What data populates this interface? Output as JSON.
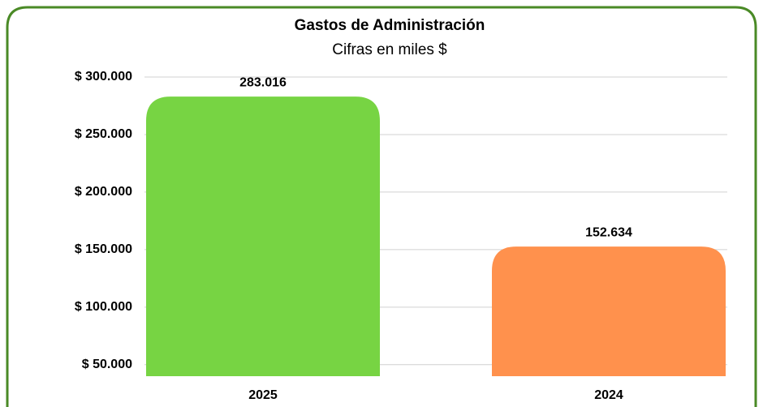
{
  "chart_data": {
    "type": "bar",
    "title": "Gastos de Administración",
    "subtitle": "Cifras en miles $",
    "categories": [
      "2025",
      "2024"
    ],
    "values": [
      283016,
      152634
    ],
    "value_labels": [
      "283.016",
      "152.634"
    ],
    "colors": [
      "#77d443",
      "#ff914d"
    ],
    "ylim": [
      40000,
      300000
    ],
    "yticks": [
      {
        "value": 50000,
        "label": "$ 50.000"
      },
      {
        "value": 100000,
        "label": "$ 100.000"
      },
      {
        "value": 150000,
        "label": "$ 150.000"
      },
      {
        "value": 200000,
        "label": "$ 200.000"
      },
      {
        "value": 250000,
        "label": "$ 250.000"
      },
      {
        "value": 300000,
        "label": "$ 300.000"
      }
    ],
    "grid": true
  }
}
